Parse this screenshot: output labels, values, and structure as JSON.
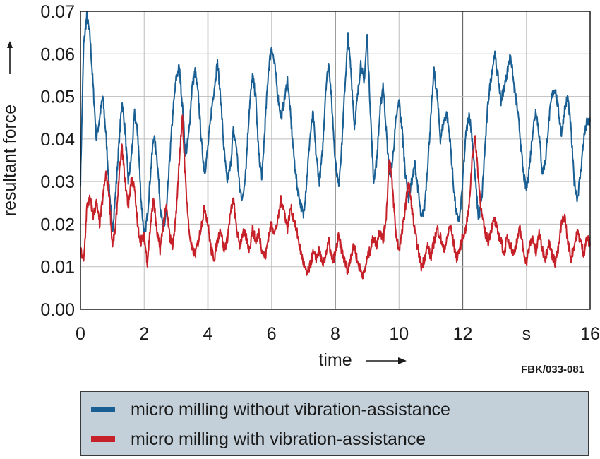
{
  "chart_data": {
    "type": "line",
    "title": "",
    "xlabel": "time",
    "ylabel": "resultant force",
    "x_unit": "s",
    "xlim": [
      0,
      16
    ],
    "ylim": [
      0,
      0.07
    ],
    "x_ticks": [
      "0",
      "2",
      "4",
      "6",
      "8",
      "10",
      "12",
      "s",
      "16"
    ],
    "y_ticks": [
      "0.00",
      "0.01",
      "0.02",
      "0.03",
      "0.04",
      "0.05",
      "0.06",
      "0.07"
    ],
    "grid": true,
    "legend_position": "bottom",
    "code": "FBK/033-081",
    "series": [
      {
        "name": "micro milling without vibration-assistance",
        "color": "#1a5f93",
        "x": [
          0,
          0.1,
          0.2,
          0.3,
          0.4,
          0.5,
          0.6,
          0.7,
          0.8,
          0.9,
          1.0,
          1.1,
          1.2,
          1.3,
          1.4,
          1.5,
          1.6,
          1.7,
          1.8,
          1.9,
          2.0,
          2.1,
          2.2,
          2.3,
          2.4,
          2.5,
          2.6,
          2.7,
          2.8,
          2.9,
          3.0,
          3.1,
          3.2,
          3.3,
          3.4,
          3.5,
          3.6,
          3.7,
          3.8,
          3.9,
          4.0,
          4.1,
          4.2,
          4.3,
          4.4,
          4.5,
          4.6,
          4.7,
          4.8,
          4.9,
          5.0,
          5.1,
          5.2,
          5.3,
          5.4,
          5.5,
          5.6,
          5.7,
          5.8,
          5.9,
          6.0,
          6.1,
          6.2,
          6.3,
          6.4,
          6.5,
          6.6,
          6.7,
          6.8,
          6.9,
          7.0,
          7.1,
          7.2,
          7.3,
          7.4,
          7.5,
          7.6,
          7.7,
          7.8,
          7.9,
          8.0,
          8.1,
          8.2,
          8.3,
          8.4,
          8.5,
          8.6,
          8.7,
          8.8,
          8.9,
          9.0,
          9.1,
          9.2,
          9.3,
          9.4,
          9.5,
          9.6,
          9.7,
          9.8,
          9.9,
          10.0,
          10.1,
          10.2,
          10.3,
          10.4,
          10.5,
          10.6,
          10.7,
          10.8,
          10.9,
          11.0,
          11.1,
          11.2,
          11.3,
          11.4,
          11.5,
          11.6,
          11.7,
          11.8,
          11.9,
          12.0,
          12.1,
          12.2,
          12.3,
          12.4,
          12.5,
          12.6,
          12.7,
          12.8,
          12.9,
          13.0,
          13.1,
          13.2,
          13.3,
          13.4,
          13.5,
          13.6,
          13.7,
          13.8,
          13.9,
          14.0,
          14.1,
          14.2,
          14.3,
          14.4,
          14.5,
          14.6,
          14.7,
          14.8,
          14.9,
          15.0,
          15.1,
          15.2,
          15.3,
          15.4,
          15.5,
          15.6,
          15.7,
          15.8,
          15.9,
          16.0
        ],
        "values": [
          0.03,
          0.062,
          0.069,
          0.064,
          0.052,
          0.04,
          0.045,
          0.05,
          0.041,
          0.029,
          0.018,
          0.027,
          0.038,
          0.049,
          0.042,
          0.03,
          0.036,
          0.046,
          0.041,
          0.026,
          0.017,
          0.022,
          0.032,
          0.041,
          0.036,
          0.025,
          0.018,
          0.023,
          0.035,
          0.046,
          0.054,
          0.057,
          0.048,
          0.036,
          0.041,
          0.052,
          0.056,
          0.05,
          0.039,
          0.032,
          0.038,
          0.046,
          0.052,
          0.058,
          0.05,
          0.038,
          0.03,
          0.033,
          0.042,
          0.038,
          0.028,
          0.026,
          0.034,
          0.047,
          0.055,
          0.05,
          0.036,
          0.031,
          0.044,
          0.056,
          0.062,
          0.057,
          0.05,
          0.045,
          0.049,
          0.054,
          0.045,
          0.036,
          0.029,
          0.025,
          0.022,
          0.03,
          0.04,
          0.046,
          0.036,
          0.03,
          0.037,
          0.052,
          0.058,
          0.047,
          0.035,
          0.029,
          0.038,
          0.052,
          0.064,
          0.055,
          0.043,
          0.05,
          0.058,
          0.053,
          0.064,
          0.047,
          0.03,
          0.035,
          0.046,
          0.053,
          0.042,
          0.031,
          0.035,
          0.044,
          0.049,
          0.042,
          0.032,
          0.026,
          0.03,
          0.034,
          0.028,
          0.021,
          0.024,
          0.034,
          0.045,
          0.056,
          0.05,
          0.04,
          0.044,
          0.046,
          0.04,
          0.03,
          0.022,
          0.021,
          0.03,
          0.041,
          0.046,
          0.04,
          0.03,
          0.021,
          0.026,
          0.038,
          0.049,
          0.055,
          0.06,
          0.055,
          0.049,
          0.052,
          0.056,
          0.06,
          0.053,
          0.048,
          0.041,
          0.032,
          0.028,
          0.034,
          0.042,
          0.047,
          0.041,
          0.032,
          0.035,
          0.044,
          0.05,
          0.052,
          0.047,
          0.041,
          0.047,
          0.05,
          0.042,
          0.03,
          0.026,
          0.032,
          0.04,
          0.044,
          0.044
        ]
      },
      {
        "name": "micro milling with vibration-assistance",
        "color": "#c62029",
        "x": [
          0,
          0.1,
          0.2,
          0.3,
          0.4,
          0.5,
          0.6,
          0.7,
          0.8,
          0.9,
          1.0,
          1.1,
          1.2,
          1.3,
          1.4,
          1.5,
          1.6,
          1.7,
          1.8,
          1.9,
          2.0,
          2.1,
          2.2,
          2.3,
          2.4,
          2.5,
          2.6,
          2.7,
          2.8,
          2.9,
          3.0,
          3.1,
          3.2,
          3.3,
          3.4,
          3.5,
          3.6,
          3.7,
          3.8,
          3.9,
          4.0,
          4.1,
          4.2,
          4.3,
          4.4,
          4.5,
          4.6,
          4.7,
          4.8,
          4.9,
          5.0,
          5.1,
          5.2,
          5.3,
          5.4,
          5.5,
          5.6,
          5.7,
          5.8,
          5.9,
          6.0,
          6.1,
          6.2,
          6.3,
          6.4,
          6.5,
          6.6,
          6.7,
          6.8,
          6.9,
          7.0,
          7.1,
          7.2,
          7.3,
          7.4,
          7.5,
          7.6,
          7.7,
          7.8,
          7.9,
          8.0,
          8.1,
          8.2,
          8.3,
          8.4,
          8.5,
          8.6,
          8.7,
          8.8,
          8.9,
          9.0,
          9.1,
          9.2,
          9.3,
          9.4,
          9.5,
          9.6,
          9.7,
          9.8,
          9.9,
          10.0,
          10.1,
          10.2,
          10.3,
          10.4,
          10.5,
          10.6,
          10.7,
          10.8,
          10.9,
          11.0,
          11.1,
          11.2,
          11.3,
          11.4,
          11.5,
          11.6,
          11.7,
          11.8,
          11.9,
          12.0,
          12.1,
          12.2,
          12.3,
          12.4,
          12.5,
          12.6,
          12.7,
          12.8,
          12.9,
          13.0,
          13.1,
          13.2,
          13.3,
          13.4,
          13.5,
          13.6,
          13.7,
          13.8,
          13.9,
          14.0,
          14.1,
          14.2,
          14.3,
          14.4,
          14.5,
          14.6,
          14.7,
          14.8,
          14.9,
          15.0,
          15.1,
          15.2,
          15.3,
          15.4,
          15.5,
          15.6,
          15.7,
          15.8,
          15.9,
          16.0
        ],
        "values": [
          0.014,
          0.011,
          0.024,
          0.026,
          0.022,
          0.025,
          0.02,
          0.026,
          0.032,
          0.027,
          0.015,
          0.019,
          0.03,
          0.038,
          0.03,
          0.024,
          0.031,
          0.028,
          0.019,
          0.016,
          0.017,
          0.011,
          0.02,
          0.026,
          0.018,
          0.014,
          0.02,
          0.024,
          0.017,
          0.015,
          0.022,
          0.035,
          0.045,
          0.03,
          0.019,
          0.014,
          0.013,
          0.016,
          0.02,
          0.024,
          0.02,
          0.014,
          0.012,
          0.016,
          0.019,
          0.014,
          0.016,
          0.022,
          0.026,
          0.019,
          0.015,
          0.018,
          0.017,
          0.014,
          0.019,
          0.016,
          0.018,
          0.014,
          0.012,
          0.017,
          0.02,
          0.018,
          0.021,
          0.026,
          0.023,
          0.019,
          0.024,
          0.021,
          0.018,
          0.014,
          0.011,
          0.008,
          0.01,
          0.013,
          0.012,
          0.014,
          0.01,
          0.013,
          0.016,
          0.011,
          0.013,
          0.017,
          0.014,
          0.011,
          0.009,
          0.013,
          0.015,
          0.011,
          0.009,
          0.008,
          0.012,
          0.014,
          0.017,
          0.015,
          0.019,
          0.016,
          0.022,
          0.036,
          0.028,
          0.018,
          0.014,
          0.018,
          0.024,
          0.03,
          0.024,
          0.018,
          0.014,
          0.01,
          0.012,
          0.015,
          0.012,
          0.016,
          0.019,
          0.017,
          0.014,
          0.016,
          0.02,
          0.016,
          0.012,
          0.014,
          0.017,
          0.019,
          0.024,
          0.036,
          0.04,
          0.03,
          0.022,
          0.018,
          0.016,
          0.019,
          0.021,
          0.018,
          0.016,
          0.013,
          0.017,
          0.015,
          0.013,
          0.016,
          0.019,
          0.014,
          0.011,
          0.015,
          0.017,
          0.013,
          0.018,
          0.014,
          0.012,
          0.016,
          0.013,
          0.011,
          0.014,
          0.02,
          0.022,
          0.016,
          0.012,
          0.015,
          0.018,
          0.016,
          0.013,
          0.017,
          0.015
        ]
      }
    ]
  }
}
